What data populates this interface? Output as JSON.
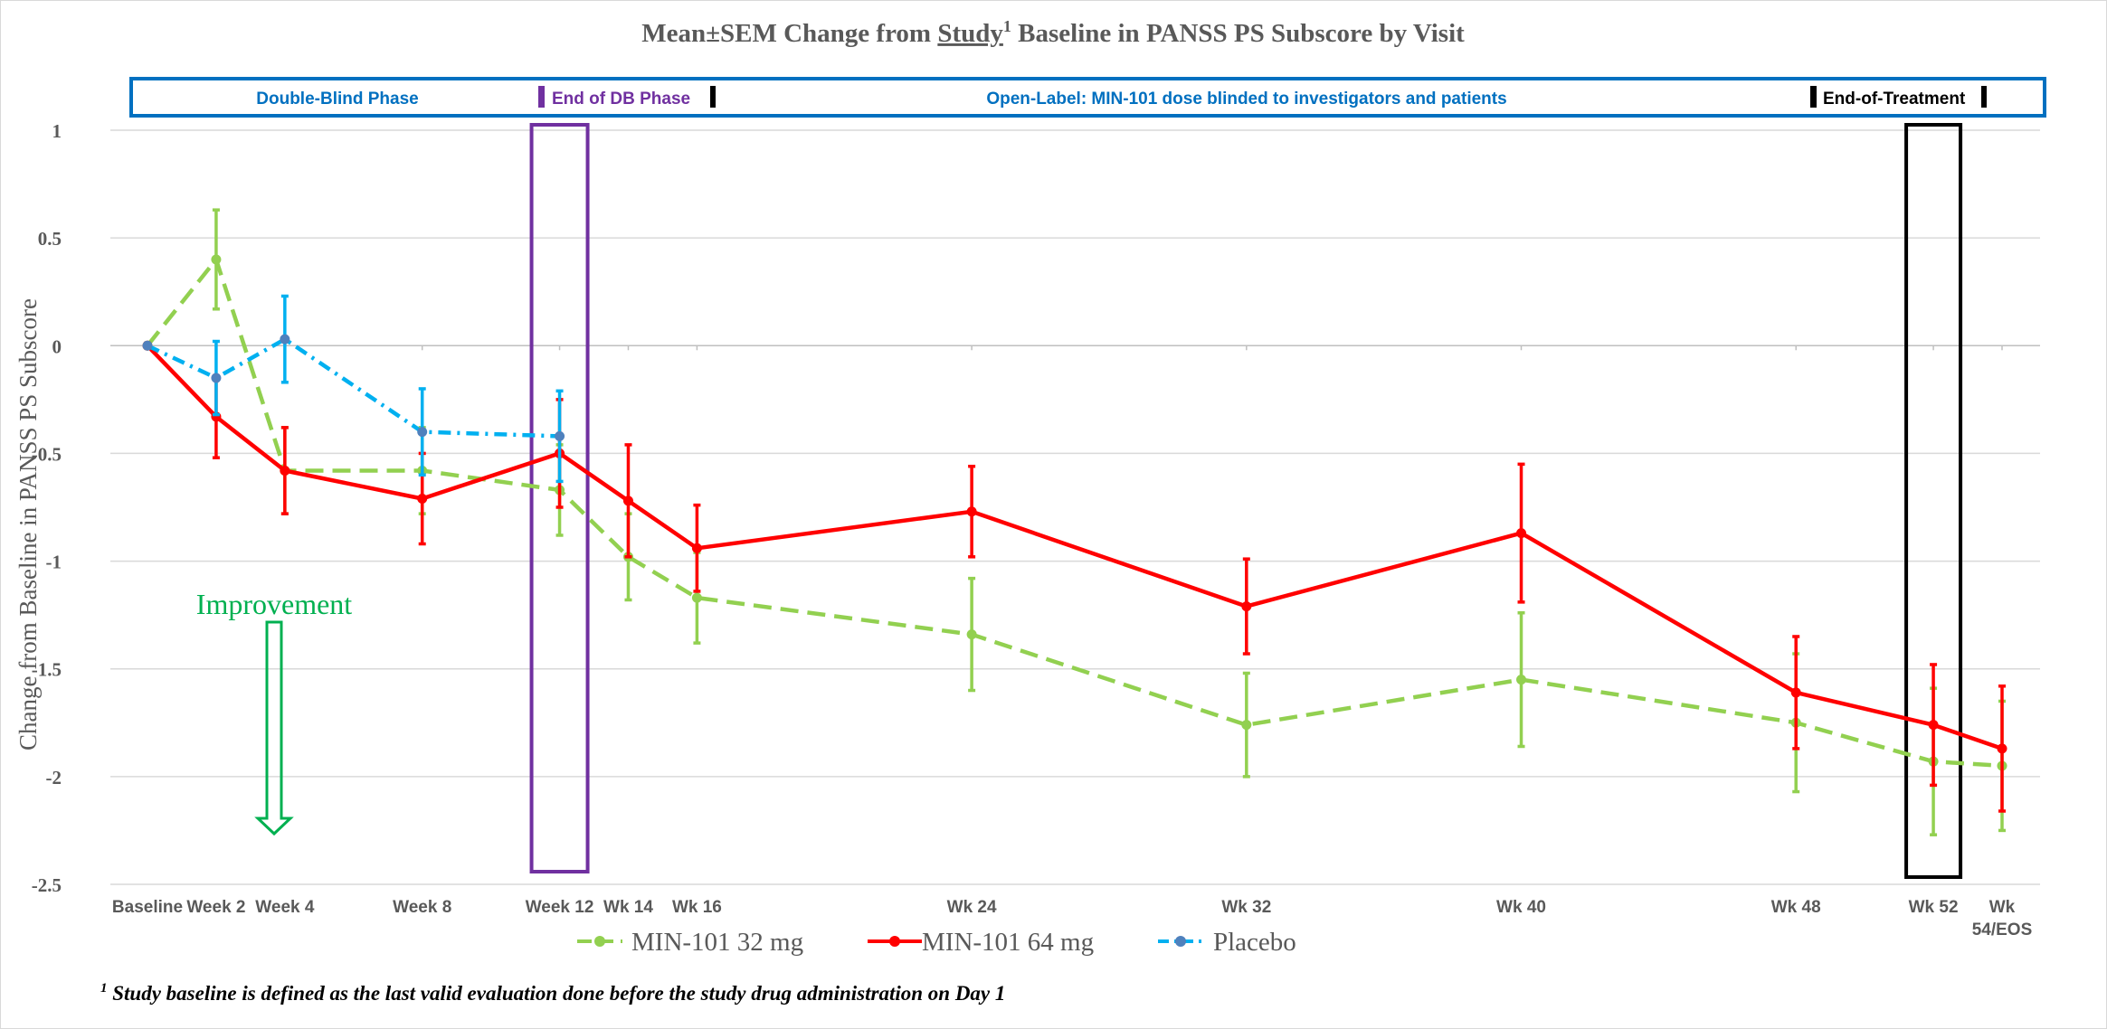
{
  "chart_data": {
    "type": "line",
    "title_prefix": "Mean±SEM Change from ",
    "title_underlined": "Study",
    "title_sup": "1",
    "title_suffix": " Baseline in PANSS PS Subscore by Visit",
    "ylabel": "Change from Baseline in PANSS PS Subscore",
    "ylim": [
      -2.5,
      1
    ],
    "yticks": [
      1,
      0.5,
      0,
      -0.5,
      -1,
      -1.5,
      -2,
      -2.5
    ],
    "ytick_labels": [
      "1",
      "0.5",
      "0",
      "-0.5",
      "-1",
      "-1.5",
      "-2",
      "-2.5"
    ],
    "x_weeks": [
      0,
      2,
      4,
      8,
      12,
      14,
      16,
      24,
      32,
      40,
      48,
      52,
      54
    ],
    "xtick_labels": [
      [
        "Baseline"
      ],
      [
        "Week 2"
      ],
      [
        "Week 4"
      ],
      [
        "Week 8"
      ],
      [
        "Week 12"
      ],
      [
        "Wk 14"
      ],
      [
        "Wk 16"
      ],
      [
        "Wk 24"
      ],
      [
        "Wk 32"
      ],
      [
        "Wk 40"
      ],
      [
        "Wk 48"
      ],
      [
        "Wk 52"
      ],
      [
        "Wk",
        "54/EOS"
      ]
    ],
    "grid": true,
    "legend_position": "bottom",
    "series": [
      {
        "name": "MIN-101 32 mg",
        "color": "#92d050",
        "dash": "dashed",
        "x": [
          0,
          2,
          4,
          8,
          12,
          14,
          16,
          24,
          32,
          40,
          48,
          52,
          54
        ],
        "values": [
          0,
          0.4,
          -0.58,
          -0.58,
          -0.67,
          -0.98,
          -1.17,
          -1.34,
          -1.76,
          -1.55,
          -1.75,
          -1.93,
          -1.95
        ],
        "sem": [
          0,
          0.23,
          0.2,
          0.2,
          0.21,
          0.2,
          0.21,
          0.26,
          0.24,
          0.31,
          0.32,
          0.34,
          0.3
        ]
      },
      {
        "name": "MIN-101 64 mg",
        "color": "#ff0000",
        "dash": "solid",
        "x": [
          0,
          2,
          4,
          8,
          12,
          14,
          16,
          24,
          32,
          40,
          48,
          52,
          54
        ],
        "values": [
          0,
          -0.33,
          -0.58,
          -0.71,
          -0.5,
          -0.72,
          -0.94,
          -0.77,
          -1.21,
          -0.87,
          -1.61,
          -1.76,
          -1.87
        ],
        "sem": [
          0,
          0.19,
          0.2,
          0.21,
          0.25,
          0.26,
          0.2,
          0.21,
          0.22,
          0.32,
          0.26,
          0.28,
          0.29
        ]
      },
      {
        "name": "Placebo",
        "color": "#00b0f0",
        "dash": "dashdot",
        "x": [
          0,
          2,
          4,
          8,
          12
        ],
        "values": [
          0,
          -0.15,
          0.03,
          -0.4,
          -0.42
        ],
        "sem": [
          0,
          0.17,
          0.2,
          0.2,
          0.21
        ]
      }
    ],
    "phase_banner": {
      "double_blind": "Double-Blind Phase",
      "end_db": "End of DB Phase",
      "open_label": "Open-Label: MIN-101 dose blinded to investigators and patients",
      "end_treatment": "End-of-Treatment"
    },
    "annotation": "Improvement",
    "highlight_weeks": [
      12,
      52
    ],
    "colors": {
      "banner_border": "#0070c0",
      "banner_text": "#0070c0",
      "end_db_box": "#7030a0",
      "end_treatment_box": "#000000",
      "improvement": "#00b050",
      "axis_text": "#595959",
      "title_text": "#595959"
    }
  },
  "footnote_sup": "1",
  "footnote": " Study baseline is defined as the last valid evaluation done before the study drug administration on Day 1"
}
